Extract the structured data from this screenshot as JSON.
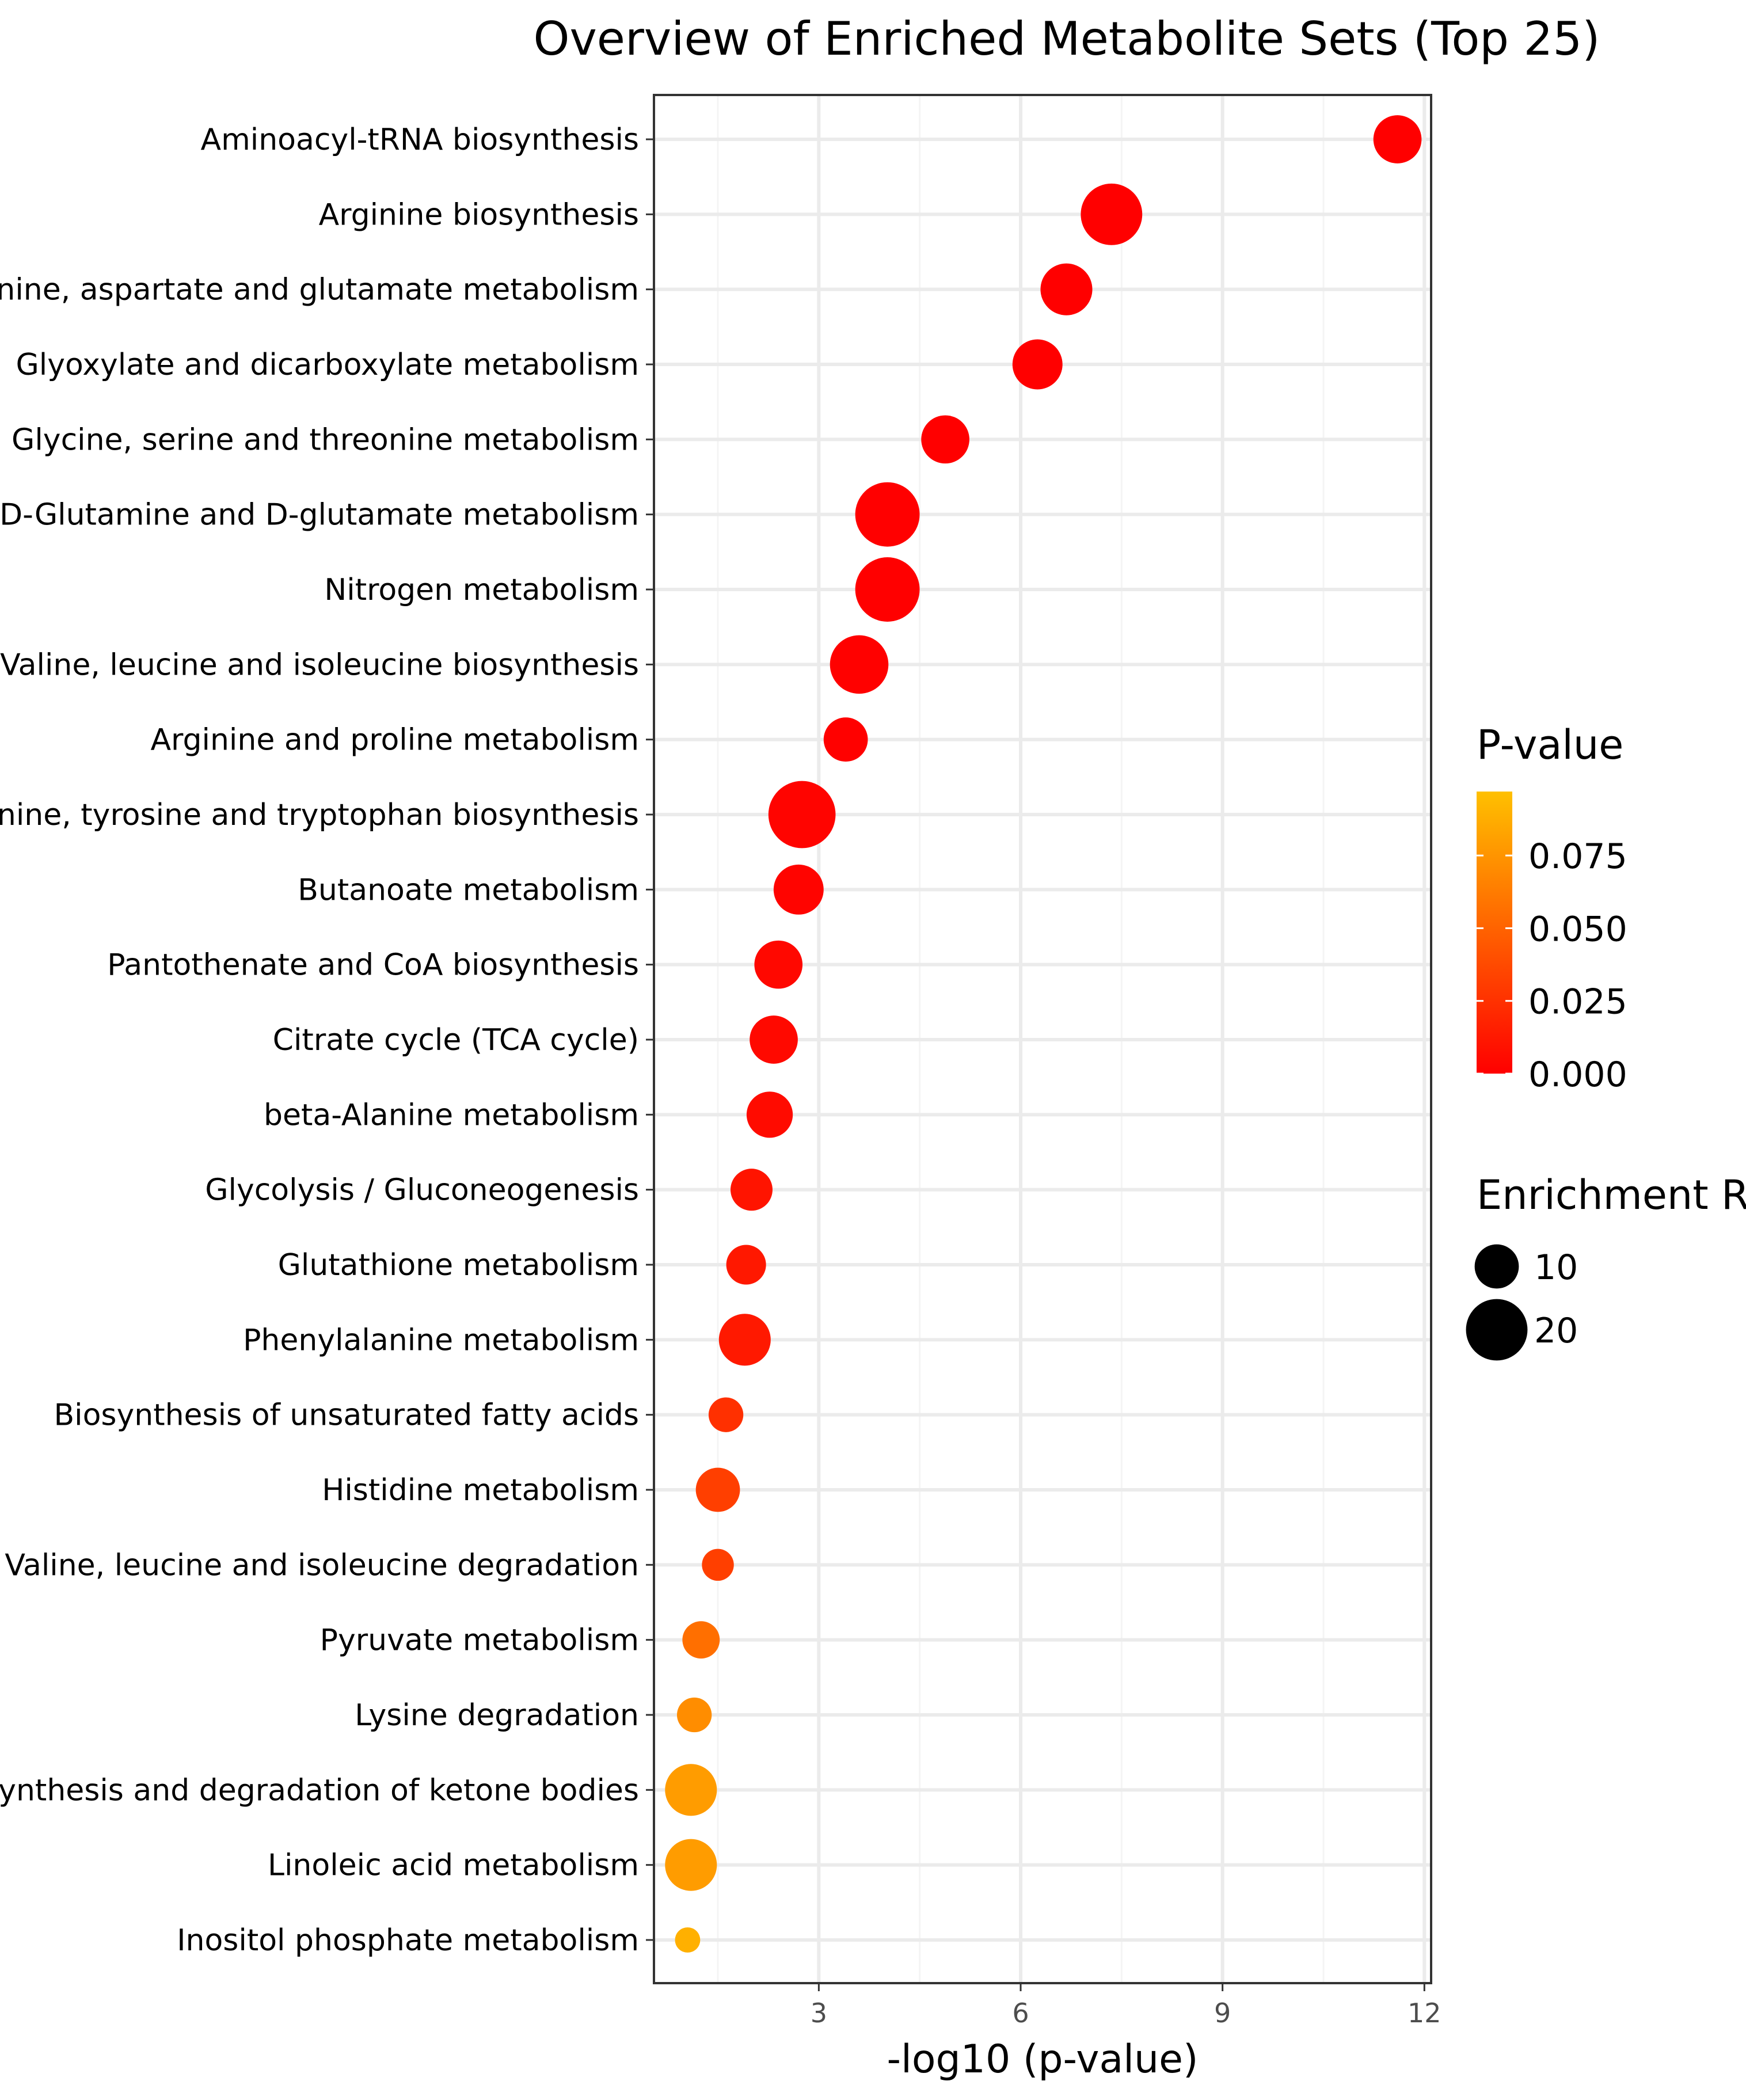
{
  "chart_data": {
    "type": "scatter",
    "title": "Overview of Enriched Metabolite Sets (Top 25)",
    "xlabel": "-log10 (p-value)",
    "ylabel": "",
    "xlim": [
      0.55,
      12.1
    ],
    "xticks": [
      3,
      6,
      9,
      12
    ],
    "grid": true,
    "categories": [
      "Aminoacyl-tRNA biosynthesis",
      "Arginine biosynthesis",
      "Alanine, aspartate and glutamate metabolism",
      "Glyoxylate and dicarboxylate metabolism",
      "Glycine, serine and threonine metabolism",
      "D-Glutamine and D-glutamate metabolism",
      "Nitrogen metabolism",
      "Valine, leucine and isoleucine biosynthesis",
      "Arginine and proline metabolism",
      "Phenylalanine, tyrosine and tryptophan biosynthesis",
      "Butanoate metabolism",
      "Pantothenate and CoA biosynthesis",
      "Citrate cycle (TCA cycle)",
      "beta-Alanine metabolism",
      "Glycolysis / Gluconeogenesis",
      "Glutathione metabolism",
      "Phenylalanine metabolism",
      "Biosynthesis of unsaturated fatty acids",
      "Histidine metabolism",
      "Valine, leucine and isoleucine degradation",
      "Pyruvate metabolism",
      "Lysine degradation",
      "Synthesis and degradation of ketone bodies",
      "Linoleic acid metabolism",
      "Inositol phosphate metabolism"
    ],
    "x": [
      11.6,
      7.35,
      6.68,
      6.25,
      4.88,
      4.02,
      4.02,
      3.6,
      3.4,
      2.75,
      2.7,
      2.4,
      2.33,
      2.27,
      2.0,
      1.92,
      1.9,
      1.62,
      1.5,
      1.5,
      1.25,
      1.15,
      1.1,
      1.1,
      1.05
    ],
    "enrichment_ratio": [
      12,
      20,
      14,
      13,
      12,
      22,
      22,
      18,
      10,
      24,
      13,
      12,
      12,
      11,
      9,
      8,
      14,
      6,
      10,
      5,
      7,
      6,
      14,
      14,
      3
    ],
    "p_value": [
      0.0,
      0.0,
      0.0,
      0.0,
      0.0,
      0.0001,
      0.0001,
      0.0003,
      0.0004,
      0.0018,
      0.002,
      0.004,
      0.0047,
      0.0054,
      0.01,
      0.012,
      0.0126,
      0.024,
      0.032,
      0.032,
      0.056,
      0.071,
      0.079,
      0.079,
      0.089
    ],
    "color_legend": {
      "title": "P-value",
      "ticks": [
        "0.075",
        "0.050",
        "0.025",
        "0.000"
      ],
      "tick_values": [
        0.075,
        0.05,
        0.025,
        0.0
      ],
      "range": [
        0.0,
        0.097
      ],
      "low_color": "#ff0000",
      "high_color": "#ffc000",
      "placement": "right"
    },
    "size_legend": {
      "title": "Enrichment Ratio",
      "labels": [
        "10",
        "20"
      ],
      "values": [
        10,
        20
      ],
      "placement": "right"
    }
  }
}
